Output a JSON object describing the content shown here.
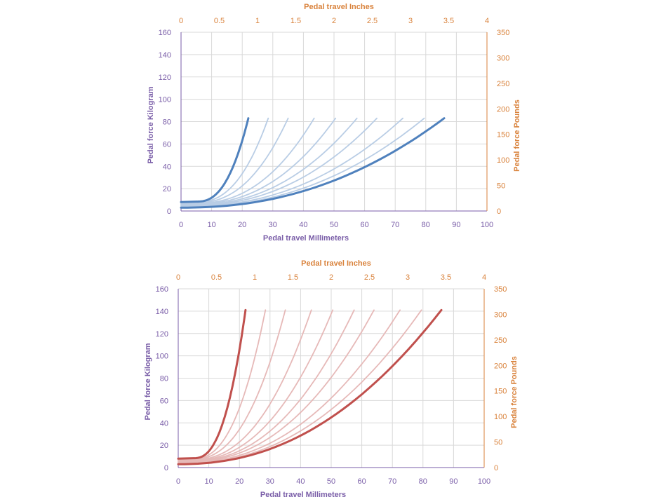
{
  "chart_data": [
    {
      "type": "line",
      "name": "chart-top",
      "color_main": "#4f81bd",
      "color_light": "#b9cde5",
      "x_bottom": {
        "label": "Pedal travel Millimeters",
        "range": [
          0,
          100
        ],
        "ticks": [
          0,
          10,
          20,
          30,
          40,
          50,
          60,
          70,
          80,
          90,
          100
        ]
      },
      "x_top": {
        "label": "Pedal travel Inches",
        "range": [
          0,
          4
        ],
        "ticks": [
          "0",
          "0.5",
          "1",
          "1.5",
          "2",
          "2.5",
          "3",
          "3.5",
          "4"
        ]
      },
      "y_left": {
        "label": "Pedal force Kilogram",
        "range": [
          0,
          160
        ],
        "ticks": [
          0,
          20,
          40,
          60,
          80,
          100,
          120,
          140,
          160
        ]
      },
      "y_right": {
        "label": "Pedal force Pounds",
        "range": [
          0,
          350
        ],
        "ticks": [
          0,
          50,
          100,
          150,
          200,
          250,
          300,
          350
        ]
      },
      "grid": true,
      "curve_family": {
        "start_min": [
          0,
          3
        ],
        "start_max": [
          0,
          8
        ],
        "knee": 5,
        "end_y": 83,
        "end_x": [
          22,
          28.5,
          35,
          43.5,
          50.5,
          57.5,
          64,
          72.5,
          79.5,
          86
        ],
        "thick": [
          0,
          9
        ]
      }
    },
    {
      "type": "line",
      "name": "chart-bottom",
      "color_main": "#c0504d",
      "color_light": "#e6b9b8",
      "x_bottom": {
        "label": "Pedal travel Millimeters",
        "range": [
          0,
          100
        ],
        "ticks": [
          0,
          10,
          20,
          30,
          40,
          50,
          60,
          70,
          80,
          90,
          100
        ]
      },
      "x_top": {
        "label": "Pedal travel Inches",
        "range": [
          0,
          4
        ],
        "ticks": [
          "0",
          "0.5",
          "1",
          "1.5",
          "2",
          "2.5",
          "3",
          "3.5",
          "4"
        ]
      },
      "y_left": {
        "label": "Pedal force Kilogram",
        "range": [
          0,
          160
        ],
        "ticks": [
          0,
          20,
          40,
          60,
          80,
          100,
          120,
          140,
          160
        ]
      },
      "y_right": {
        "label": "Pedal force Pounds",
        "range": [
          0,
          350
        ],
        "ticks": [
          0,
          50,
          100,
          150,
          200,
          250,
          300,
          350
        ]
      },
      "grid": true,
      "curve_family": {
        "start_min": [
          0,
          3
        ],
        "start_max": [
          0,
          8
        ],
        "knee": 5,
        "end_y": 141,
        "end_x": [
          22,
          28.5,
          35,
          43.5,
          50.5,
          57.5,
          64,
          72.5,
          79.5,
          86
        ],
        "thick": [
          0,
          9
        ]
      }
    }
  ]
}
